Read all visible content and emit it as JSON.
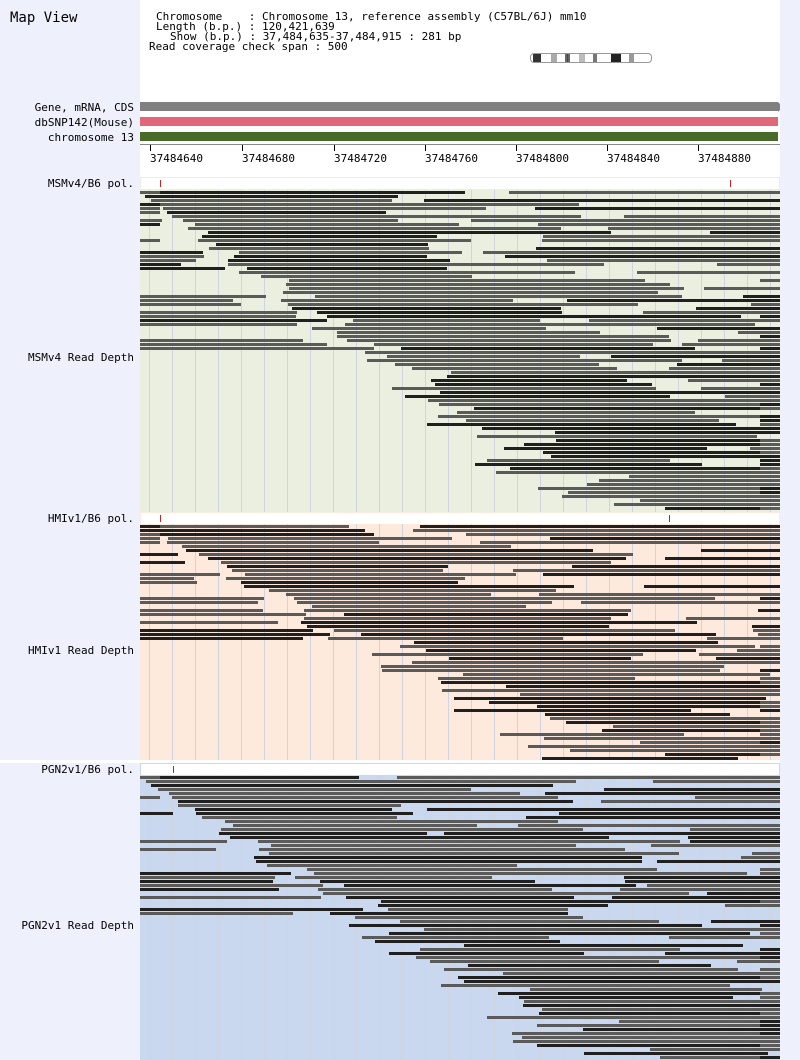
{
  "title": "Map View",
  "info": {
    "chromosome_line": "Chromosome    : Chromosome 13, reference assembly (C57BL/6J) mm10",
    "length_line": "Length (b.p.) : 120,421,639",
    "show_line": "Show (b.p.) : 37,484,635-37,484,915 : 281 bp",
    "coverage_line": "Read coverage check span : 500"
  },
  "tracks": {
    "gene": "Gene, mRNA, CDS",
    "dbsnp": "dbSNP142(Mouse)",
    "chrom": "chromosome 13"
  },
  "axis": {
    "ticks": [
      "37484640",
      "37484680",
      "37484720",
      "37484760",
      "37484800",
      "37484840",
      "37484880"
    ]
  },
  "panels": [
    {
      "pol_label": "MSMv4/B6 pol.",
      "depth_label": "MSMv4 Read Depth",
      "bg": "#eaefe0",
      "snps": [
        159,
        729
      ]
    },
    {
      "pol_label": "HMIv1/B6 pol.",
      "depth_label": "HMIv1 Read Depth",
      "bg": "#fdeadc",
      "snps": [
        159,
        668
      ]
    },
    {
      "pol_label": "PGN2v1/B6 pol.",
      "depth_label": "PGN2v1 Read Depth",
      "bg": "#c9d8ee",
      "snps": [
        172
      ]
    }
  ],
  "colors": {
    "gene_track": "#808080",
    "dbsnp_track": "#e06878",
    "chrom_track": "#4a6a2a",
    "read_dark": "#202020",
    "read_gray": "#5a5a5a"
  }
}
